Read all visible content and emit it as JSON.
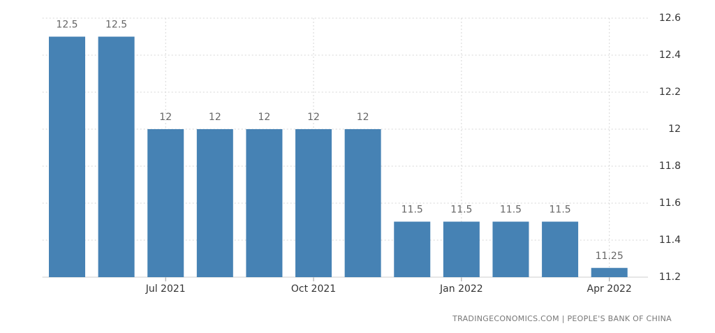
{
  "chart_data": {
    "type": "bar",
    "categories": [
      null,
      null,
      "Jul 2021",
      null,
      null,
      "Oct 2021",
      null,
      null,
      "Jan 2022",
      null,
      null,
      "Apr 2022"
    ],
    "values": [
      12.5,
      12.5,
      12,
      12,
      12,
      12,
      12,
      11.5,
      11.5,
      11.5,
      11.5,
      11.25
    ],
    "color": "#4682b4",
    "ylim": [
      11.2,
      12.6
    ],
    "yticks": [
      11.2,
      11.4,
      11.6,
      11.8,
      12,
      12.2,
      12.4,
      12.6
    ],
    "grid": true,
    "source": "TRADINGECONOMICS.COM | PEOPLE'S BANK OF CHINA"
  }
}
